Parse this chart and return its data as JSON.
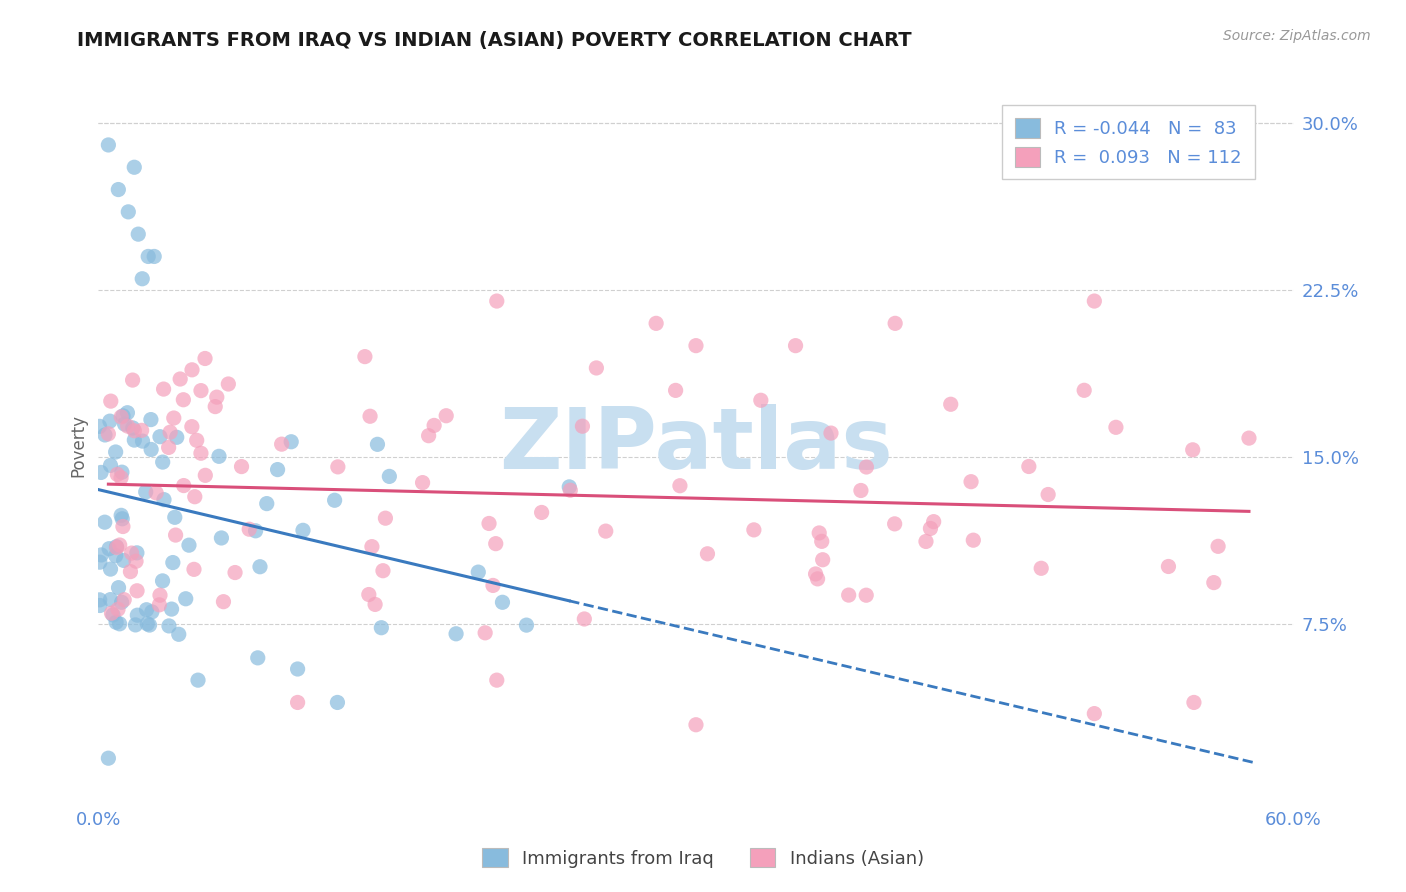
{
  "title": "IMMIGRANTS FROM IRAQ VS INDIAN (ASIAN) POVERTY CORRELATION CHART",
  "source": "Source: ZipAtlas.com",
  "ylabel": "Poverty",
  "xlim": [
    0.0,
    0.6
  ],
  "ylim": [
    -0.005,
    0.315
  ],
  "ytick_vals": [
    0.075,
    0.15,
    0.225,
    0.3
  ],
  "ytick_labels": [
    "7.5%",
    "15.0%",
    "22.5%",
    "30.0%"
  ],
  "xtick_vals": [
    0.0,
    0.6
  ],
  "xtick_labels": [
    "0.0%",
    "60.0%"
  ],
  "legend_label1": "Immigrants from Iraq",
  "legend_label2": "Indians (Asian)",
  "color_iraq": "#88bbdd",
  "color_indian": "#f4a0bb",
  "color_trendline_iraq": "#3a7abf",
  "color_trendline_indian": "#d94f7a",
  "background_color": "#ffffff",
  "title_color": "#1a1a1a",
  "tick_color": "#5b8dd9",
  "watermark_color": "#c8dff0",
  "watermark_text": "ZIPatlas",
  "source_text": "Source: ZipAtlas.com"
}
